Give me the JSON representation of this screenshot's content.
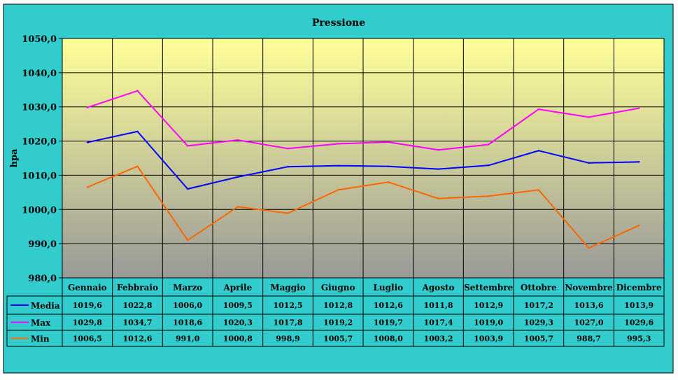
{
  "chart_data": {
    "type": "line",
    "title": "Pressione",
    "ylabel": "hpa",
    "xlabel": "",
    "ylim": [
      980,
      1050
    ],
    "ytick_labels": [
      "980,0",
      "990,0",
      "1000,0",
      "1010,0",
      "1020,0",
      "1030,0",
      "1040,0",
      "1050,0"
    ],
    "yticks": [
      980,
      990,
      1000,
      1010,
      1020,
      1030,
      1040,
      1050
    ],
    "grid": true,
    "legend": "data-table-left",
    "categories": [
      "Gennaio",
      "Febbraio",
      "Marzo",
      "Aprile",
      "Maggio",
      "Giugno",
      "Luglio",
      "Agosto",
      "Settembre",
      "Ottobre",
      "Novembre",
      "Dicembre"
    ],
    "series": [
      {
        "name": "Media",
        "color": "#0000ff",
        "values": [
          1019.6,
          1022.8,
          1006.0,
          1009.5,
          1012.5,
          1012.8,
          1012.6,
          1011.8,
          1012.9,
          1017.2,
          1013.6,
          1013.9
        ],
        "labels": [
          "1019,6",
          "1022,8",
          "1006,0",
          "1009,5",
          "1012,5",
          "1012,8",
          "1012,6",
          "1011,8",
          "1012,9",
          "1017,2",
          "1013,6",
          "1013,9"
        ]
      },
      {
        "name": "Max",
        "color": "#ff00ff",
        "values": [
          1029.8,
          1034.7,
          1018.6,
          1020.3,
          1017.8,
          1019.2,
          1019.7,
          1017.4,
          1019.0,
          1029.3,
          1027.0,
          1029.6
        ],
        "labels": [
          "1029,8",
          "1034,7",
          "1018,6",
          "1020,3",
          "1017,8",
          "1019,2",
          "1019,7",
          "1017,4",
          "1019,0",
          "1029,3",
          "1027,0",
          "1029,6"
        ]
      },
      {
        "name": "Min",
        "color": "#ff6600",
        "values": [
          1006.5,
          1012.6,
          991.0,
          1000.8,
          998.9,
          1005.7,
          1008.0,
          1003.2,
          1003.9,
          1005.7,
          988.7,
          995.3
        ],
        "labels": [
          "1006,5",
          "1012,6",
          "991,0",
          "1000,8",
          "998,9",
          "1005,7",
          "1008,0",
          "1003,2",
          "1003,9",
          "1005,7",
          "988,7",
          "995,3"
        ]
      }
    ]
  },
  "colors": {
    "frame_background": "#33cccc",
    "plot_top": "#ffff99",
    "plot_bottom": "#999999",
    "gridline": "#000000"
  }
}
